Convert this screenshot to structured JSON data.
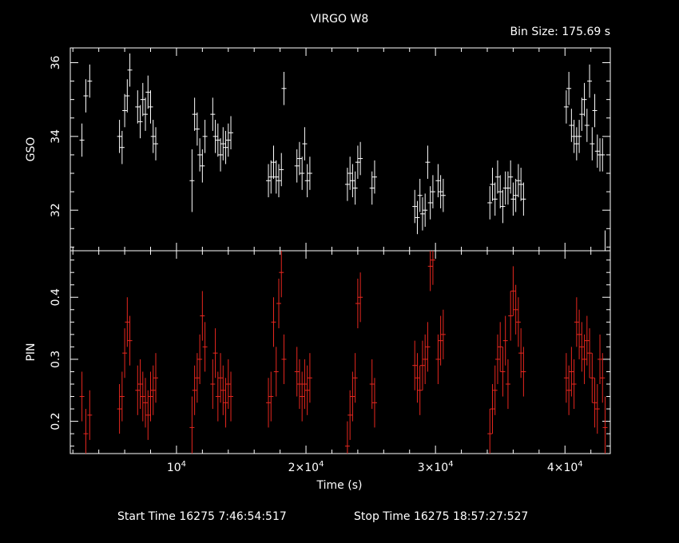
{
  "title": "VIRGO W8",
  "bin_size_text": "Bin Size: 175.69 s",
  "xlabel": "Time (s)",
  "x_tick_labels": [
    {
      "value": 10000,
      "mantissa": "10",
      "sup": "4"
    },
    {
      "value": 20000,
      "mantissa": "2×10",
      "sup": "4"
    },
    {
      "value": 30000,
      "mantissa": "3×10",
      "sup": "4"
    },
    {
      "value": 40000,
      "mantissa": "4×10",
      "sup": "4"
    }
  ],
  "start_time_text": "Start Time 16275  7:46:54:517",
  "stop_time_text": "Stop Time 16275 18:57:27:527",
  "colors": {
    "gso": "#ffffff",
    "pin": "#e8271f",
    "frame": "#ffffff",
    "background": "#000000"
  },
  "chart_data": [
    {
      "type": "scatter",
      "panel": "top",
      "ylabel": "GSO",
      "y_tick_labels": [
        "32",
        "34",
        "36"
      ],
      "xlim": [
        1800,
        43500
      ],
      "ylim": [
        30.9,
        36.4
      ],
      "error_bars": true,
      "series": [
        {
          "color": "#ffffff",
          "x": [
            2700,
            3000,
            3300,
            5600,
            5800,
            6000,
            6200,
            6400,
            7000,
            7200,
            7400,
            7600,
            7800,
            8000,
            8200,
            8400,
            11200,
            11400,
            11600,
            11800,
            12000,
            12200,
            12800,
            13000,
            13200,
            13400,
            13600,
            13800,
            14000,
            14200,
            17100,
            17300,
            17500,
            17700,
            17900,
            18100,
            18300,
            19300,
            19500,
            19700,
            19900,
            20100,
            20300,
            23200,
            23400,
            23600,
            23800,
            24000,
            24200,
            25100,
            25300,
            28400,
            28600,
            28800,
            29000,
            29200,
            29400,
            29600,
            29800,
            30200,
            30400,
            30600,
            34200,
            34400,
            34600,
            34800,
            35000,
            35200,
            35400,
            35600,
            35800,
            36000,
            36200,
            36400,
            36600,
            36800,
            40100,
            40300,
            40500,
            40700,
            40900,
            41100,
            41300,
            41500,
            41700,
            41900,
            42100,
            42300,
            42500,
            42700,
            42900,
            43100
          ],
          "y": [
            33.9,
            35.1,
            35.5,
            34.0,
            33.7,
            34.7,
            35.1,
            35.8,
            34.8,
            34.4,
            35.0,
            34.6,
            35.2,
            34.8,
            34.0,
            33.8,
            32.8,
            34.6,
            34.2,
            33.5,
            33.2,
            34.0,
            34.6,
            34.0,
            33.9,
            33.5,
            33.8,
            33.7,
            33.9,
            34.1,
            32.8,
            32.9,
            33.3,
            32.9,
            32.8,
            33.1,
            35.3,
            33.2,
            33.4,
            33.0,
            33.8,
            32.8,
            33.0,
            32.7,
            33.0,
            32.8,
            32.6,
            33.3,
            33.4,
            32.6,
            32.9,
            32.1,
            31.8,
            32.4,
            31.9,
            32.0,
            33.3,
            32.2,
            32.5,
            32.8,
            32.5,
            32.4,
            32.2,
            32.7,
            32.3,
            32.9,
            32.5,
            32.1,
            32.6,
            32.6,
            32.9,
            32.3,
            32.4,
            32.8,
            32.7,
            32.3,
            34.8,
            35.3,
            34.3,
            34.0,
            33.8,
            34.0,
            34.6,
            35.0,
            34.3,
            35.5,
            33.8,
            34.7,
            33.6,
            33.5,
            33.5,
            30.9
          ],
          "err": [
            0.45,
            0.45,
            0.45,
            0.45,
            0.45,
            0.45,
            0.45,
            0.45,
            0.45,
            0.45,
            0.45,
            0.45,
            0.45,
            0.45,
            0.45,
            0.45,
            0.85,
            0.45,
            0.45,
            0.45,
            0.45,
            0.45,
            0.45,
            0.45,
            0.45,
            0.45,
            0.45,
            0.45,
            0.45,
            0.45,
            0.45,
            0.45,
            0.45,
            0.45,
            0.45,
            0.45,
            0.45,
            0.45,
            0.45,
            0.45,
            0.45,
            0.45,
            0.45,
            0.45,
            0.45,
            0.45,
            0.45,
            0.45,
            0.45,
            0.45,
            0.45,
            0.45,
            0.45,
            0.45,
            0.45,
            0.45,
            0.45,
            0.45,
            0.45,
            0.45,
            0.45,
            0.45,
            0.45,
            0.45,
            0.45,
            0.45,
            0.45,
            0.45,
            0.45,
            0.45,
            0.45,
            0.45,
            0.45,
            0.45,
            0.45,
            0.45,
            0.45,
            0.45,
            0.45,
            0.45,
            0.45,
            0.45,
            0.45,
            0.45,
            0.45,
            0.45,
            0.45,
            0.45,
            0.45,
            0.45,
            0.45,
            0.55
          ]
        }
      ]
    },
    {
      "type": "scatter",
      "panel": "bottom",
      "ylabel": "PIN",
      "y_tick_labels": [
        "0.2",
        "0.3",
        "0.4"
      ],
      "xlim": [
        1800,
        43500
      ],
      "ylim": [
        0.148,
        0.475
      ],
      "error_bars": true,
      "series": [
        {
          "color": "#e8271f",
          "x": [
            2700,
            3000,
            3300,
            5600,
            5800,
            6000,
            6200,
            6400,
            7000,
            7200,
            7400,
            7600,
            7800,
            8000,
            8200,
            8400,
            11200,
            11400,
            11600,
            11800,
            12000,
            12200,
            12800,
            13000,
            13200,
            13400,
            13600,
            13800,
            14000,
            14200,
            17100,
            17300,
            17500,
            17700,
            17900,
            18100,
            18300,
            19300,
            19500,
            19700,
            19900,
            20100,
            20300,
            23200,
            23400,
            23600,
            23800,
            24000,
            24200,
            25100,
            25300,
            28400,
            28600,
            28800,
            29000,
            29200,
            29400,
            29600,
            29800,
            30200,
            30400,
            30600,
            34200,
            34400,
            34600,
            34800,
            35000,
            35200,
            35400,
            35600,
            35800,
            36000,
            36200,
            36400,
            36600,
            36800,
            40100,
            40300,
            40500,
            40700,
            40900,
            41100,
            41300,
            41500,
            41700,
            41900,
            42100,
            42300,
            42500,
            42700,
            42900,
            43100
          ],
          "y": [
            0.24,
            0.18,
            0.21,
            0.22,
            0.24,
            0.31,
            0.36,
            0.33,
            0.25,
            0.26,
            0.24,
            0.23,
            0.21,
            0.24,
            0.25,
            0.27,
            0.19,
            0.25,
            0.27,
            0.3,
            0.37,
            0.32,
            0.26,
            0.31,
            0.24,
            0.27,
            0.25,
            0.23,
            0.26,
            0.24,
            0.23,
            0.24,
            0.36,
            0.28,
            0.39,
            0.44,
            0.3,
            0.28,
            0.26,
            0.24,
            0.26,
            0.25,
            0.27,
            0.16,
            0.21,
            0.24,
            0.27,
            0.39,
            0.4,
            0.26,
            0.23,
            0.29,
            0.27,
            0.25,
            0.29,
            0.3,
            0.32,
            0.45,
            0.46,
            0.3,
            0.33,
            0.34,
            0.18,
            0.22,
            0.25,
            0.3,
            0.32,
            0.28,
            0.33,
            0.26,
            0.37,
            0.41,
            0.38,
            0.36,
            0.31,
            0.28,
            0.27,
            0.25,
            0.28,
            0.26,
            0.36,
            0.34,
            0.32,
            0.3,
            0.33,
            0.31,
            0.27,
            0.23,
            0.22,
            0.3,
            0.27,
            0.19
          ],
          "err": [
            0.04,
            0.04,
            0.04,
            0.04,
            0.04,
            0.04,
            0.04,
            0.04,
            0.04,
            0.04,
            0.04,
            0.04,
            0.04,
            0.04,
            0.04,
            0.04,
            0.05,
            0.04,
            0.04,
            0.04,
            0.04,
            0.04,
            0.04,
            0.04,
            0.04,
            0.04,
            0.04,
            0.04,
            0.04,
            0.04,
            0.04,
            0.04,
            0.04,
            0.04,
            0.04,
            0.04,
            0.04,
            0.04,
            0.04,
            0.04,
            0.04,
            0.04,
            0.04,
            0.04,
            0.04,
            0.04,
            0.04,
            0.04,
            0.04,
            0.04,
            0.04,
            0.04,
            0.04,
            0.04,
            0.04,
            0.04,
            0.04,
            0.04,
            0.04,
            0.04,
            0.04,
            0.04,
            0.04,
            0.04,
            0.04,
            0.04,
            0.04,
            0.04,
            0.04,
            0.04,
            0.04,
            0.04,
            0.04,
            0.04,
            0.04,
            0.04,
            0.04,
            0.04,
            0.04,
            0.04,
            0.04,
            0.04,
            0.04,
            0.04,
            0.04,
            0.04,
            0.04,
            0.04,
            0.04,
            0.04,
            0.04,
            0.05
          ]
        }
      ]
    }
  ]
}
